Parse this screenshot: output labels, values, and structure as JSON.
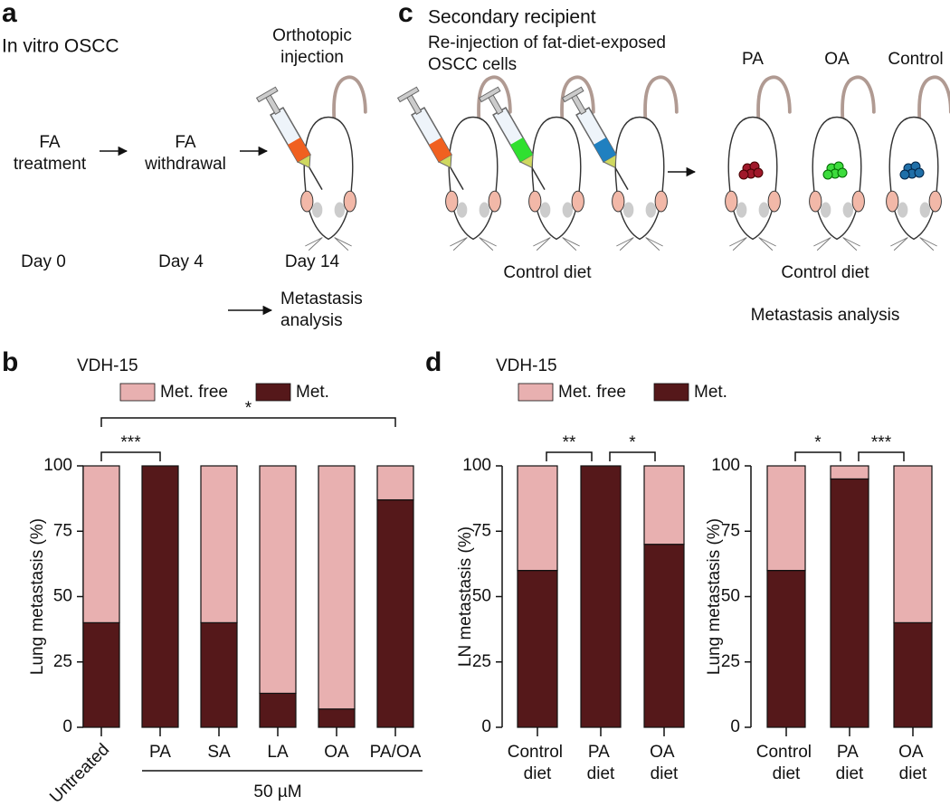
{
  "panel_a": {
    "label": "a",
    "title": "In vitro OSCC",
    "injection": [
      "Orthotopic",
      "injection"
    ],
    "step1": [
      "FA",
      "treatment"
    ],
    "step2": [
      "FA",
      "withdrawal"
    ],
    "days": [
      "Day 0",
      "Day 4",
      "Day 14"
    ],
    "analysis": [
      "Metastasis",
      "analysis"
    ]
  },
  "panel_c": {
    "label": "c",
    "title": "Secondary recipient",
    "subtitle": [
      "Re-injection of fat-diet-exposed",
      "OSCC cells"
    ],
    "groups": [
      "PA",
      "OA",
      "Control"
    ],
    "diet_left": "Control diet",
    "diet_right": "Control diet",
    "analysis": "Metastasis analysis"
  },
  "chart_data": [
    {
      "type": "bar",
      "stacked": true,
      "panel_label": "b",
      "title": "VDH-15",
      "ylabel": "Lung metastasis (%)",
      "categories": [
        "Untreated",
        "PA",
        "SA",
        "LA",
        "OA",
        "PA/OA"
      ],
      "series": [
        {
          "name": "Met. free",
          "color": "#e8b0b0",
          "values": [
            60,
            0,
            60,
            87,
            93,
            13
          ]
        },
        {
          "name": "Met.",
          "color": "#55181a",
          "values": [
            40,
            100,
            40,
            13,
            7,
            87
          ]
        }
      ],
      "ylim": [
        0,
        100
      ],
      "yticks": [
        0,
        25,
        50,
        75,
        100
      ],
      "group_label": {
        "label": "50 µM",
        "from": "PA",
        "to": "PA/OA"
      },
      "annotations": [
        {
          "label": "***",
          "from": "Untreated",
          "to": "PA"
        },
        {
          "label": "*",
          "from": "Untreated",
          "to": "PA/OA"
        }
      ]
    },
    {
      "type": "bar",
      "stacked": true,
      "panel_label": "d",
      "title": "VDH-15",
      "ylabel": "LN metastasis (%)",
      "categories": [
        "Control diet",
        "PA diet",
        "OA diet"
      ],
      "series": [
        {
          "name": "Met. free",
          "color": "#e8b0b0",
          "values": [
            40,
            0,
            30
          ]
        },
        {
          "name": "Met.",
          "color": "#55181a",
          "values": [
            60,
            100,
            70
          ]
        }
      ],
      "ylim": [
        0,
        100
      ],
      "yticks": [
        0,
        25,
        50,
        75,
        100
      ],
      "annotations": [
        {
          "label": "**",
          "from": "Control diet",
          "to": "PA diet"
        },
        {
          "label": "*",
          "from": "PA diet",
          "to": "OA diet"
        }
      ]
    },
    {
      "type": "bar",
      "stacked": true,
      "ylabel": "Lung metastasis (%)",
      "categories": [
        "Control diet",
        "PA diet",
        "OA diet"
      ],
      "series": [
        {
          "color": "#e8b0b0",
          "values": [
            40,
            5,
            60
          ]
        },
        {
          "color": "#55181a",
          "values": [
            60,
            95,
            40
          ]
        }
      ],
      "ylim": [
        0,
        100
      ],
      "yticks": [
        0,
        25,
        50,
        75,
        100
      ],
      "annotations": [
        {
          "label": "*",
          "from": "Control diet",
          "to": "PA diet"
        },
        {
          "label": "***",
          "from": "PA diet",
          "to": "OA diet"
        }
      ]
    }
  ]
}
